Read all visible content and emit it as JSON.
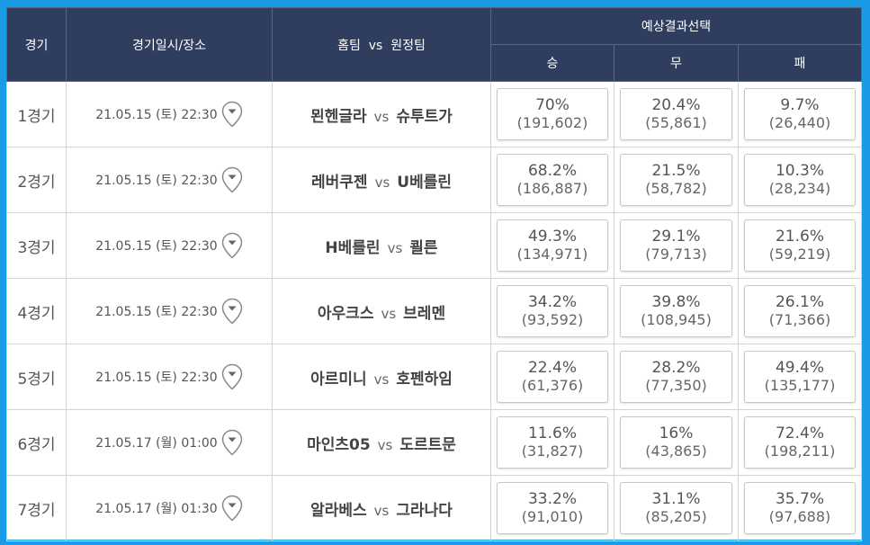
{
  "header": {
    "col_round": "경기",
    "col_datetime": "경기일시/장소",
    "col_teams": "홈팀  vs  원정팀",
    "col_prediction": "예상결과선택",
    "col_win": "승",
    "col_draw": "무",
    "col_lose": "패"
  },
  "icons": {
    "location": "location-pin-icon"
  },
  "colors": {
    "header_bg": "#2f3d5e",
    "frame_bg": "#1a9be6"
  },
  "games": [
    {
      "round": "1경기",
      "datetime": "21.05.15 (토) 22:30",
      "home": "묀헨글라",
      "vs": "vs",
      "away": "슈투트가",
      "win_pct": "70%",
      "win_cnt": "(191,602)",
      "draw_pct": "20.4%",
      "draw_cnt": "(55,861)",
      "lose_pct": "9.7%",
      "lose_cnt": "(26,440)"
    },
    {
      "round": "2경기",
      "datetime": "21.05.15 (토) 22:30",
      "home": "레버쿠젠",
      "vs": "vs",
      "away": "U베를린",
      "win_pct": "68.2%",
      "win_cnt": "(186,887)",
      "draw_pct": "21.5%",
      "draw_cnt": "(58,782)",
      "lose_pct": "10.3%",
      "lose_cnt": "(28,234)"
    },
    {
      "round": "3경기",
      "datetime": "21.05.15 (토) 22:30",
      "home": "H베를린",
      "vs": "vs",
      "away": "쾰른",
      "win_pct": "49.3%",
      "win_cnt": "(134,971)",
      "draw_pct": "29.1%",
      "draw_cnt": "(79,713)",
      "lose_pct": "21.6%",
      "lose_cnt": "(59,219)"
    },
    {
      "round": "4경기",
      "datetime": "21.05.15 (토) 22:30",
      "home": "아우크스",
      "vs": "vs",
      "away": "브레멘",
      "win_pct": "34.2%",
      "win_cnt": "(93,592)",
      "draw_pct": "39.8%",
      "draw_cnt": "(108,945)",
      "lose_pct": "26.1%",
      "lose_cnt": "(71,366)"
    },
    {
      "round": "5경기",
      "datetime": "21.05.15 (토) 22:30",
      "home": "아르미니",
      "vs": "vs",
      "away": "호펜하임",
      "win_pct": "22.4%",
      "win_cnt": "(61,376)",
      "draw_pct": "28.2%",
      "draw_cnt": "(77,350)",
      "lose_pct": "49.4%",
      "lose_cnt": "(135,177)"
    },
    {
      "round": "6경기",
      "datetime": "21.05.17 (월) 01:00",
      "home": "마인츠05",
      "vs": "vs",
      "away": "도르트문",
      "win_pct": "11.6%",
      "win_cnt": "(31,827)",
      "draw_pct": "16%",
      "draw_cnt": "(43,865)",
      "lose_pct": "72.4%",
      "lose_cnt": "(198,211)"
    },
    {
      "round": "7경기",
      "datetime": "21.05.17 (월) 01:30",
      "home": "알라베스",
      "vs": "vs",
      "away": "그라나다",
      "win_pct": "33.2%",
      "win_cnt": "(91,010)",
      "draw_pct": "31.1%",
      "draw_cnt": "(85,205)",
      "lose_pct": "35.7%",
      "lose_cnt": "(97,688)"
    }
  ]
}
